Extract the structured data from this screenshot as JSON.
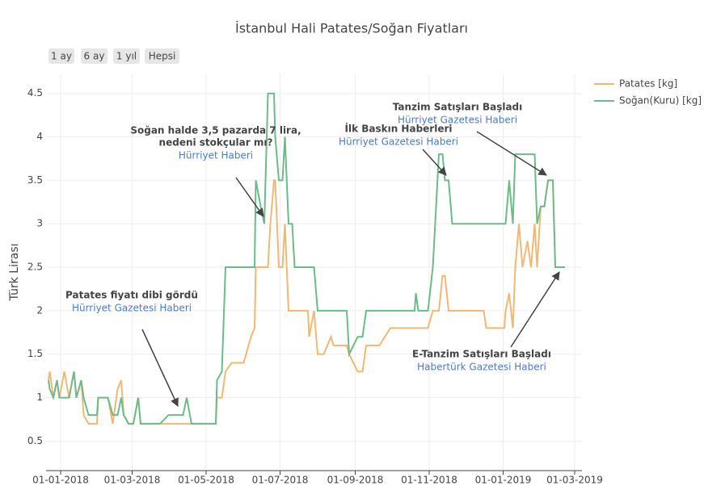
{
  "chart_data": {
    "type": "line",
    "title": "İstanbul Hali Patates/Soğan Fiyatları",
    "y_label": "Türk Lirası",
    "buttons": [
      "1 ay",
      "6 ay",
      "1 yıl",
      "Hepsi"
    ],
    "x": [
      "2017-12-22",
      "2017-12-23",
      "2017-12-26",
      "2017-12-29",
      "2017-12-31",
      "2018-01-04",
      "2018-01-08",
      "2018-01-12",
      "2018-01-14",
      "2018-01-18",
      "2018-01-20",
      "2018-01-24",
      "2018-01-31",
      "2018-02-01",
      "2018-02-09",
      "2018-02-13",
      "2018-02-17",
      "2018-02-20",
      "2018-02-22",
      "2018-02-26",
      "2018-03-02",
      "2018-03-06",
      "2018-03-08",
      "2018-03-24",
      "2018-03-31",
      "2018-04-12",
      "2018-04-15",
      "2018-04-19",
      "2018-05-09",
      "2018-05-10",
      "2018-05-14",
      "2018-05-17",
      "2018-05-22",
      "2018-06-01",
      "2018-06-05",
      "2018-06-07",
      "2018-06-10",
      "2018-06-11",
      "2018-06-15",
      "2018-06-18",
      "2018-06-21",
      "2018-06-23",
      "2018-06-26",
      "2018-06-27",
      "2018-06-30",
      "2018-07-03",
      "2018-07-05",
      "2018-07-08",
      "2018-07-11",
      "2018-07-13",
      "2018-07-24",
      "2018-07-25",
      "2018-07-29",
      "2018-08-01",
      "2018-08-06",
      "2018-08-12",
      "2018-08-14",
      "2018-08-25",
      "2018-08-27",
      "2018-09-03",
      "2018-09-07",
      "2018-09-10",
      "2018-09-21",
      "2018-09-30",
      "2018-10-20",
      "2018-10-21",
      "2018-10-23",
      "2018-10-31",
      "2018-11-04",
      "2018-11-09",
      "2018-11-12",
      "2018-11-14",
      "2018-11-17",
      "2018-11-20",
      "2018-12-16",
      "2018-12-18",
      "2019-01-02",
      "2019-01-03",
      "2019-01-06",
      "2019-01-09",
      "2019-01-11",
      "2019-01-14",
      "2019-01-17",
      "2019-01-21",
      "2019-01-24",
      "2019-01-27",
      "2019-01-29",
      "2019-02-01",
      "2019-02-04",
      "2019-02-07",
      "2019-02-11",
      "2019-02-13",
      "2019-02-21"
    ],
    "series": [
      {
        "name": "Patates [kg]",
        "color": "#f0b874",
        "values": [
          1.2,
          1.3,
          1.0,
          1.2,
          1.0,
          1.3,
          1.0,
          1.3,
          1.0,
          1.2,
          0.8,
          0.7,
          0.7,
          1.0,
          1.0,
          0.7,
          1.1,
          1.2,
          0.8,
          0.7,
          0.7,
          1.0,
          0.7,
          0.7,
          0.7,
          0.7,
          0.7,
          0.7,
          0.7,
          1.0,
          1.0,
          1.3,
          1.4,
          1.4,
          1.6,
          1.7,
          1.8,
          2.5,
          2.5,
          2.5,
          2.5,
          3.0,
          3.5,
          3.5,
          2.5,
          2.5,
          3.0,
          2.0,
          2.0,
          2.0,
          2.0,
          1.7,
          2.0,
          1.5,
          1.5,
          1.7,
          1.6,
          1.6,
          1.5,
          1.3,
          1.3,
          1.6,
          1.6,
          1.8,
          1.8,
          1.8,
          1.8,
          1.8,
          2.0,
          2.0,
          2.4,
          2.4,
          2.0,
          2.0,
          2.0,
          1.8,
          1.8,
          2.0,
          2.2,
          1.8,
          2.5,
          3.0,
          2.5,
          2.8,
          2.5,
          3.0,
          2.5,
          3.2,
          3.2,
          3.5,
          3.5,
          2.5,
          2.5
        ]
      },
      {
        "name": "Soğan(Kuru) [kg]",
        "color": "#6cbb88",
        "values": [
          1.2,
          1.1,
          1.0,
          1.2,
          1.0,
          1.0,
          1.0,
          1.3,
          1.0,
          1.2,
          1.0,
          0.8,
          0.8,
          1.0,
          1.0,
          0.8,
          0.8,
          1.0,
          0.8,
          0.7,
          0.7,
          1.0,
          0.7,
          0.7,
          0.8,
          0.8,
          1.0,
          0.7,
          0.7,
          1.2,
          1.3,
          2.5,
          2.5,
          2.5,
          2.5,
          2.5,
          2.5,
          3.5,
          3.2,
          3.0,
          4.5,
          4.5,
          4.5,
          4.0,
          3.5,
          3.5,
          4.0,
          3.0,
          3.0,
          2.5,
          2.5,
          2.5,
          2.5,
          2.0,
          2.0,
          2.0,
          2.0,
          2.0,
          1.5,
          1.7,
          1.7,
          2.0,
          2.0,
          2.0,
          2.0,
          2.2,
          2.0,
          2.0,
          2.5,
          3.8,
          3.8,
          3.5,
          3.5,
          3.0,
          3.0,
          3.0,
          3.0,
          3.0,
          3.5,
          3.0,
          3.8,
          3.8,
          3.8,
          3.8,
          3.8,
          3.8,
          3.0,
          3.2,
          3.2,
          3.5,
          3.5,
          2.5,
          2.5
        ]
      }
    ],
    "xlim": [
      "2017-12-20",
      "2019-03-07"
    ],
    "xticks": [
      {
        "value": "2018-01-01",
        "label": "01-01-2018"
      },
      {
        "value": "2018-03-01",
        "label": "01-03-2018"
      },
      {
        "value": "2018-05-01",
        "label": "01-05-2018"
      },
      {
        "value": "2018-07-01",
        "label": "01-07-2018"
      },
      {
        "value": "2018-09-01",
        "label": "01-09-2018"
      },
      {
        "value": "2018-11-01",
        "label": "01-11-2018"
      },
      {
        "value": "2019-01-01",
        "label": "01-01-2019"
      },
      {
        "value": "2019-03-01",
        "label": "01-03-2019"
      }
    ],
    "ylim": [
      0.16,
      4.72
    ],
    "yticks": [
      0.5,
      1,
      1.5,
      2,
      2.5,
      3,
      3.5,
      4,
      4.5
    ],
    "grid": true,
    "legend": "top-right",
    "annotations": [
      {
        "title": [
          "Patates fiyatı dibi gördü"
        ],
        "source": "Hürriyet Gazetesi Haberi"
      },
      {
        "title": [
          "Soğan halde 3,5 pazarda 7 lira,",
          "nedeni stokçular mı?"
        ],
        "source": "Hürriyet Haberi"
      },
      {
        "title": [
          "İlk Baskın Haberleri"
        ],
        "source": "Hürriyet Gazetesi Haberi"
      },
      {
        "title": [
          "Tanzim Satışları Başladı"
        ],
        "source": "Hürriyet Gazetesi Haberi"
      },
      {
        "title": [
          "E-Tanzim Satışları Başladı"
        ],
        "source": "Habertürk Gazetesi Haberi"
      }
    ]
  }
}
